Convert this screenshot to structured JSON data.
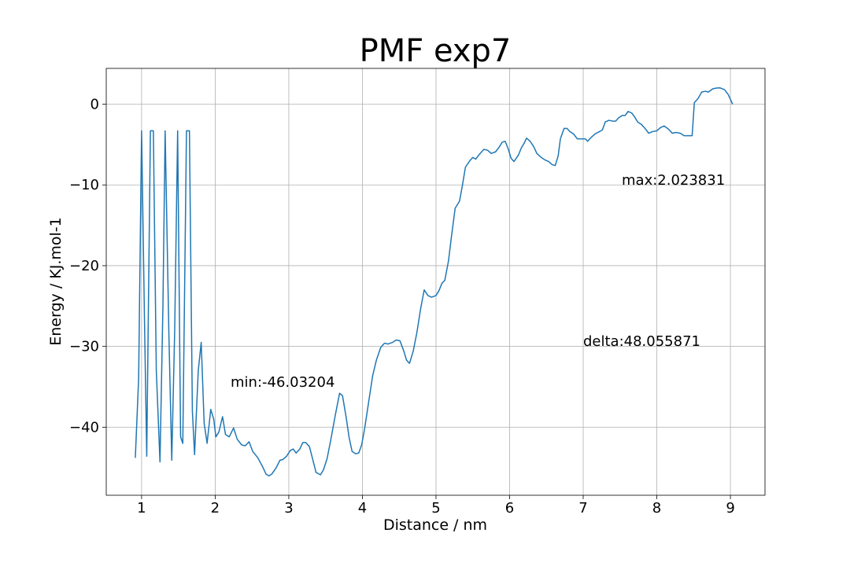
{
  "chart_data": {
    "type": "line",
    "title": "PMF exp7",
    "x_label": "Distance / nm",
    "y_label": "Energy / KJ.mol-1",
    "annotations": [
      "min:-46.03204",
      "max:2.023831",
      "delta:48.055871"
    ],
    "xlim": [
      0.52,
      9.47
    ],
    "ylim": [
      -48.43,
      4.43
    ],
    "xticks": [
      1,
      2,
      3,
      4,
      5,
      6,
      7,
      8,
      9
    ],
    "yticks": [
      {
        "value": -40,
        "label": "−40"
      },
      {
        "value": -30,
        "label": "−30"
      },
      {
        "value": -20,
        "label": "−20"
      },
      {
        "value": -10,
        "label": "−10"
      },
      0
    ],
    "grid": true,
    "series": [
      {
        "color": "#1f77b4",
        "x": [
          0.915,
          0.96,
          1.0,
          1.04,
          1.07,
          1.12,
          1.16,
          1.2,
          1.25,
          1.29,
          1.32,
          1.37,
          1.41,
          1.45,
          1.49,
          1.53,
          1.56,
          1.61,
          1.65,
          1.69,
          1.72,
          1.77,
          1.81,
          1.85,
          1.89,
          1.94,
          1.98,
          2.01,
          2.05,
          2.1,
          2.14,
          2.19,
          2.25,
          2.3,
          2.36,
          2.41,
          2.46,
          2.51,
          2.58,
          2.65,
          2.69,
          2.73,
          2.77,
          2.83,
          2.88,
          2.92,
          2.97,
          3.02,
          3.06,
          3.1,
          3.15,
          3.19,
          3.23,
          3.28,
          3.32,
          3.37,
          3.43,
          3.47,
          3.52,
          3.57,
          3.63,
          3.69,
          3.73,
          3.78,
          3.82,
          3.86,
          3.91,
          3.95,
          3.99,
          4.03,
          4.09,
          4.14,
          4.19,
          4.25,
          4.3,
          4.35,
          4.41,
          4.46,
          4.51,
          4.56,
          4.6,
          4.64,
          4.69,
          4.74,
          4.79,
          4.84,
          4.89,
          4.94,
          5.0,
          5.04,
          5.08,
          5.12,
          5.17,
          5.21,
          5.26,
          5.32,
          5.36,
          5.4,
          5.46,
          5.5,
          5.54,
          5.59,
          5.65,
          5.7,
          5.75,
          5.81,
          5.86,
          5.9,
          5.94,
          5.98,
          6.02,
          6.06,
          6.12,
          6.16,
          6.2,
          6.23,
          6.28,
          6.33,
          6.37,
          6.43,
          6.48,
          6.53,
          6.58,
          6.62,
          6.66,
          6.69,
          6.74,
          6.78,
          6.82,
          6.87,
          6.92,
          6.97,
          7.03,
          7.06,
          7.11,
          7.16,
          7.22,
          7.26,
          7.3,
          7.35,
          7.4,
          7.44,
          7.48,
          7.53,
          7.57,
          7.61,
          7.66,
          7.7,
          7.74,
          7.79,
          7.84,
          7.89,
          7.94,
          8.0,
          8.05,
          8.1,
          8.16,
          8.21,
          8.26,
          8.32,
          8.37,
          8.44,
          8.48,
          8.51,
          8.56,
          8.61,
          8.66,
          8.7,
          8.76,
          8.81,
          8.86,
          8.92,
          8.97,
          9.03
        ],
        "values": [
          -43.8,
          -34,
          -3.3,
          -27,
          -43.6,
          -3.3,
          -3.3,
          -33,
          -44.3,
          -25,
          -3.3,
          -28,
          -44.1,
          -28,
          -3.3,
          -41.2,
          -42,
          -3.3,
          -3.3,
          -38,
          -43.4,
          -33,
          -29.5,
          -39.5,
          -42,
          -37.8,
          -39,
          -41.2,
          -40.6,
          -38.7,
          -40.9,
          -41.2,
          -40.1,
          -41.5,
          -42.2,
          -42.3,
          -41.8,
          -43,
          -43.8,
          -45,
          -45.8,
          -46.03,
          -45.8,
          -45,
          -44.1,
          -44,
          -43.6,
          -42.9,
          -42.7,
          -43.2,
          -42.7,
          -41.9,
          -41.9,
          -42.4,
          -43.8,
          -45.6,
          -45.9,
          -45.3,
          -43.9,
          -41.6,
          -38.6,
          -35.8,
          -36.1,
          -38.8,
          -41.3,
          -43,
          -43.3,
          -43.2,
          -42.2,
          -40.2,
          -36.6,
          -33.6,
          -31.7,
          -30.1,
          -29.6,
          -29.7,
          -29.5,
          -29.2,
          -29.3,
          -30.5,
          -31.7,
          -32.1,
          -30.6,
          -28.3,
          -25.4,
          -23,
          -23.7,
          -23.9,
          -23.7,
          -23.1,
          -22.2,
          -21.8,
          -19.4,
          -16.4,
          -12.9,
          -12,
          -10,
          -7.8,
          -7,
          -6.6,
          -6.8,
          -6.2,
          -5.6,
          -5.7,
          -6.1,
          -5.9,
          -5.3,
          -4.7,
          -4.6,
          -5.5,
          -6.7,
          -7.1,
          -6.3,
          -5.4,
          -4.8,
          -4.2,
          -4.6,
          -5.3,
          -6.1,
          -6.6,
          -6.9,
          -7.1,
          -7.5,
          -7.6,
          -6.4,
          -4.3,
          -3,
          -3,
          -3.4,
          -3.7,
          -4.3,
          -4.3,
          -4.3,
          -4.6,
          -4.1,
          -3.7,
          -3.4,
          -3.2,
          -2.2,
          -2,
          -2.1,
          -2.1,
          -1.7,
          -1.4,
          -1.4,
          -0.9,
          -1.1,
          -1.6,
          -2.2,
          -2.5,
          -3,
          -3.6,
          -3.4,
          -3.3,
          -2.9,
          -2.7,
          -3.1,
          -3.6,
          -3.5,
          -3.6,
          -3.9,
          -3.9,
          -3.9,
          0.2,
          0.7,
          1.5,
          1.6,
          1.5,
          1.9,
          2.0,
          2.02,
          1.8,
          1.2,
          0
        ]
      }
    ]
  }
}
